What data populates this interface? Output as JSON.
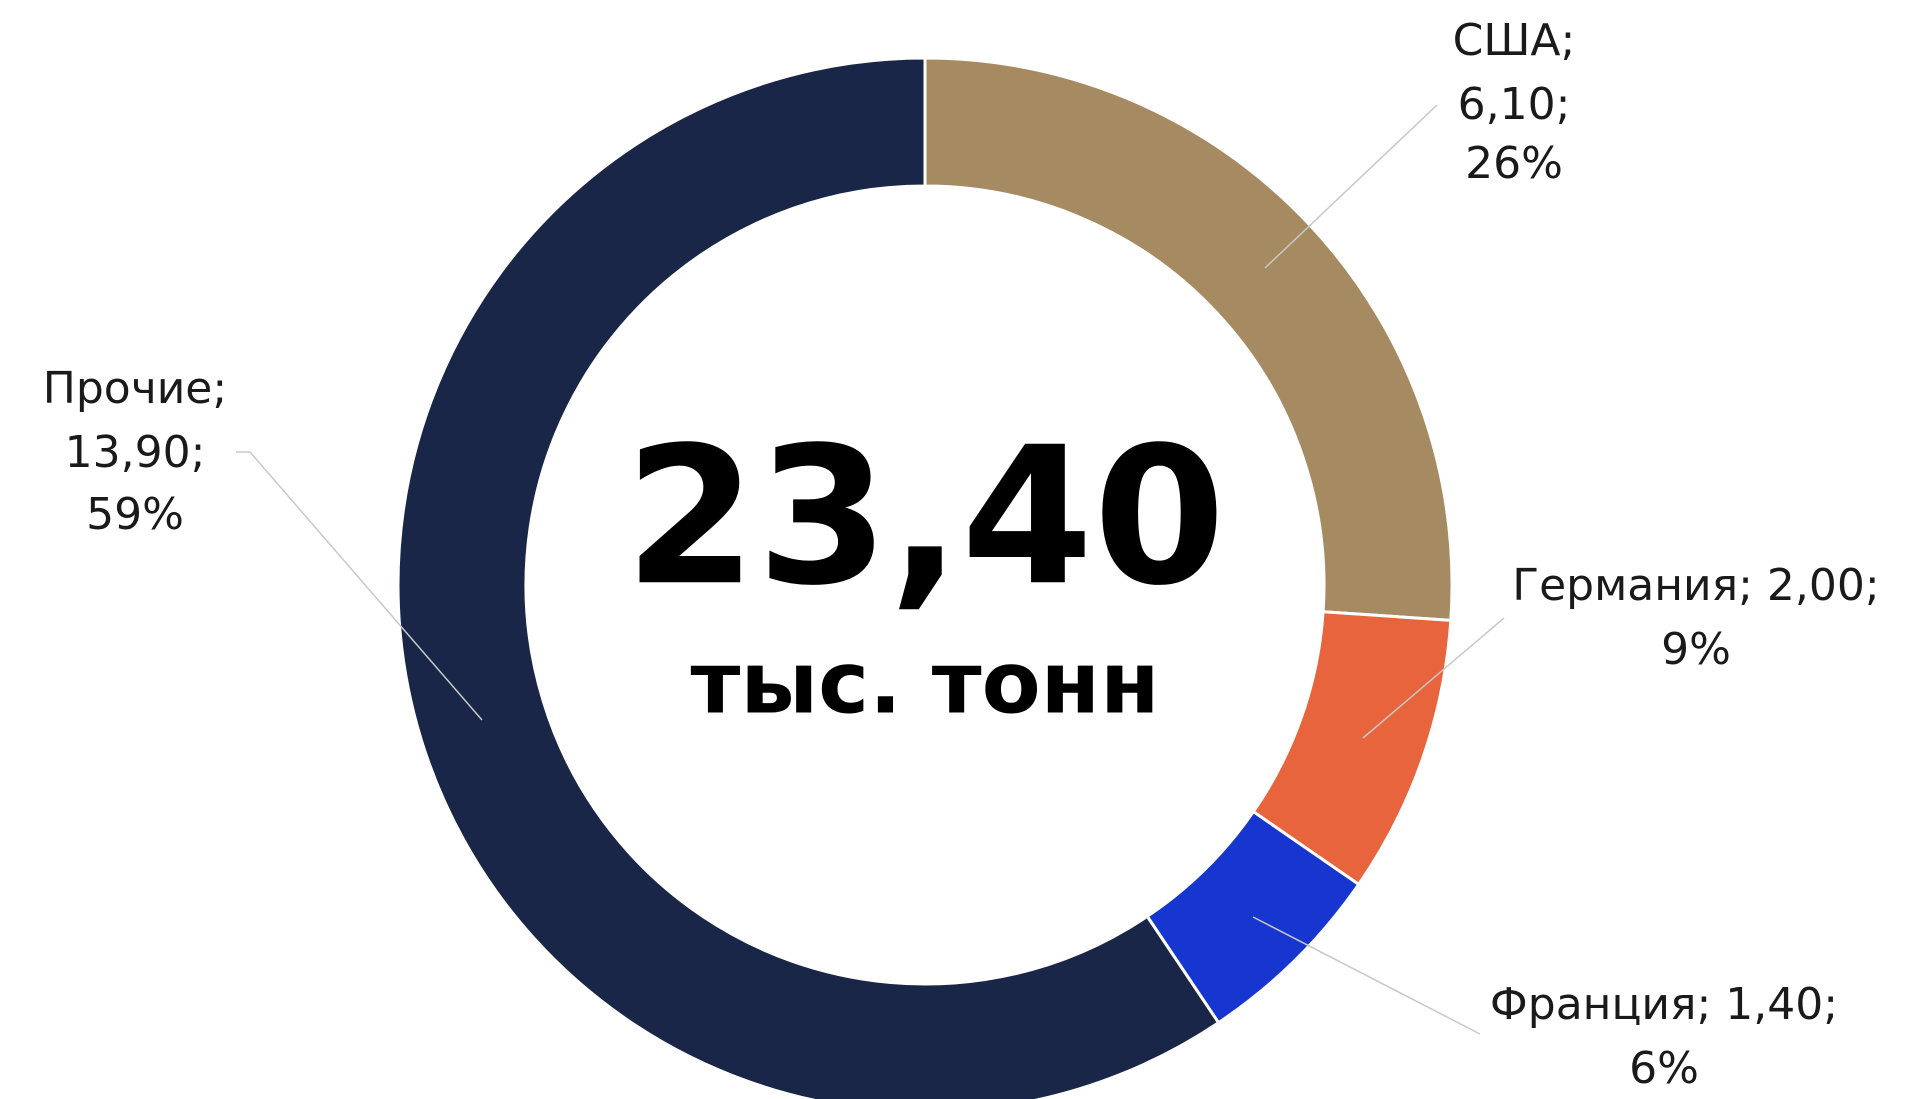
{
  "chart_data": {
    "type": "donut",
    "categories": [
      "США",
      "Германия",
      "Франция",
      "Прочие"
    ],
    "values": [
      6.1,
      2.0,
      1.4,
      13.9
    ],
    "value_labels": [
      "6,10",
      "2,00",
      "1,40",
      "13,90"
    ],
    "percent_labels": [
      "26%",
      "9%",
      "6%",
      "59%"
    ],
    "label_separator": ";",
    "colors": [
      "#a68b62",
      "#e8643c",
      "#1736d0",
      "#1a2647"
    ],
    "total": 23.4,
    "total_label": "23,40",
    "unit": "тыс. тонн"
  }
}
